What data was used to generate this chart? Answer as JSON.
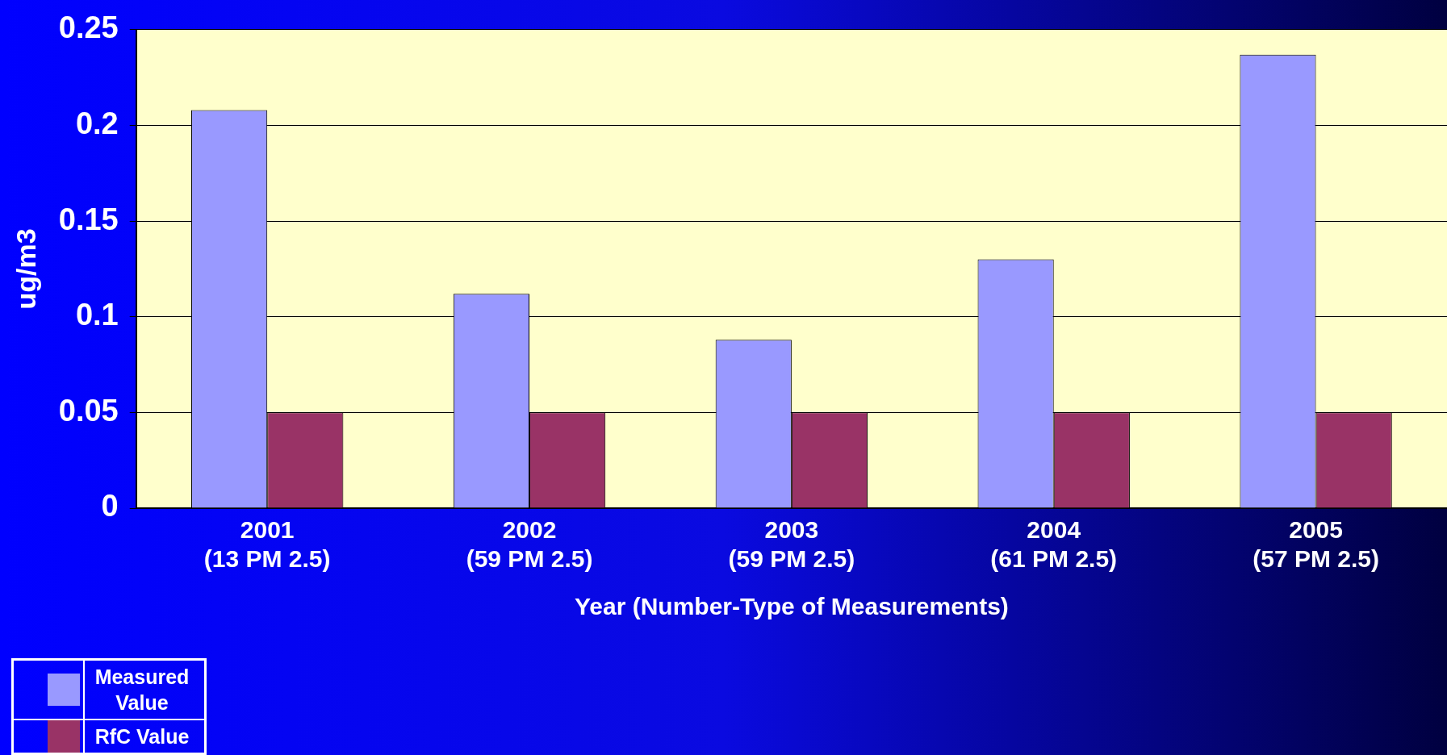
{
  "chart_data": {
    "type": "bar",
    "xlabel": "Year (Number-Type of Measurements)",
    "ylabel": "ug/m3",
    "categories": [
      "2001\n(13 PM 2.5)",
      "2002\n(59 PM 2.5)",
      "2003\n(59 PM 2.5)",
      "2004\n(61 PM 2.5)",
      "2005\n(57 PM 2.5)"
    ],
    "series": [
      {
        "name": "Measured Value",
        "color": "#9999ff",
        "values": [
          0.208,
          0.112,
          0.088,
          0.13,
          0.237
        ]
      },
      {
        "name": "RfC Value",
        "color": "#993366",
        "values": [
          0.05,
          0.05,
          0.05,
          0.05,
          0.05
        ]
      }
    ],
    "ylim": [
      0,
      0.25
    ],
    "yticks": [
      0,
      0.05,
      0.1,
      0.15,
      0.2,
      0.25
    ],
    "grid": "y",
    "legend": "bottom left"
  }
}
